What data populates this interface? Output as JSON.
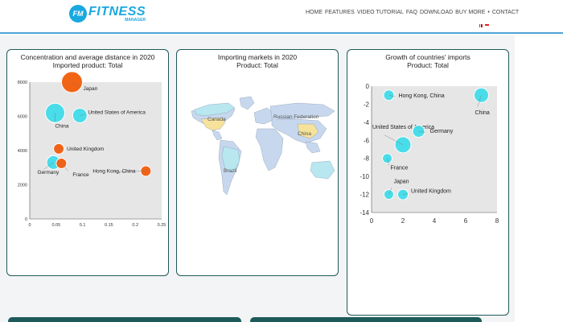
{
  "header": {
    "logo_badge": "FM",
    "logo_main": "FITNESS",
    "logo_sub": "MANAGER",
    "nav": [
      "HOME",
      "FEATURES",
      "VIDEO TUTORIAL",
      "FAQ",
      "DOWNLOAD",
      "BUY MORE",
      "CONTACT"
    ],
    "nav_separator": "•",
    "languages": [
      "en",
      "id"
    ]
  },
  "panels": {
    "concentration": {
      "title1": "Concentration and average distance in 2020",
      "title2": "Imported product: Total"
    },
    "markets": {
      "title1": "Importing markets in 2020",
      "title2": "Product: Total"
    },
    "growth": {
      "title1": "Growth of countries' imports",
      "title2": "Product: Total"
    }
  },
  "colors": {
    "accent": "#1aa8e0",
    "panel_border": "#1d5a5a",
    "cyan": "#41dcea",
    "orange": "#f25c0a",
    "plot_bg": "#e6e6e6"
  },
  "chart_data": [
    {
      "type": "scatter",
      "title": "Concentration and average distance in 2020",
      "subtitle": "Imported product: Total",
      "xlim": [
        0,
        0.25
      ],
      "ylim": [
        0,
        8000
      ],
      "x_ticks": [
        "0",
        "0.05",
        "0.1",
        "0.15",
        "0.2",
        "0.25"
      ],
      "y_ticks": [
        "0",
        "2000",
        "4000",
        "6000",
        "8000"
      ],
      "points": [
        {
          "label": "Japan",
          "x": 0.08,
          "y": 8000,
          "size": 22,
          "color": "orange"
        },
        {
          "label": "United States of America",
          "x": 0.095,
          "y": 6050,
          "size": 14,
          "color": "cyan"
        },
        {
          "label": "China",
          "x": 0.048,
          "y": 6200,
          "size": 20,
          "color": "cyan"
        },
        {
          "label": "United Kingdom",
          "x": 0.055,
          "y": 4100,
          "size": 9,
          "color": "orange"
        },
        {
          "label": "Germany",
          "x": 0.045,
          "y": 3300,
          "size": 13,
          "color": "cyan"
        },
        {
          "label": "France",
          "x": 0.06,
          "y": 3250,
          "size": 9,
          "color": "orange"
        },
        {
          "label": "Hong Kong, China",
          "x": 0.22,
          "y": 2800,
          "size": 9,
          "color": "orange"
        }
      ]
    },
    {
      "type": "map",
      "title": "Importing markets in 2020",
      "subtitle": "Product: Total",
      "labels": [
        "Canada",
        "Russian Federation",
        "China",
        "Brazil"
      ]
    },
    {
      "type": "scatter",
      "title": "Growth of countries' imports",
      "subtitle": "Product: Total",
      "xlim": [
        0,
        8
      ],
      "ylim": [
        -14,
        0
      ],
      "x_ticks": [
        "0",
        "2",
        "4",
        "6",
        "8"
      ],
      "y_ticks": [
        "0",
        "-2",
        "-4",
        "-6",
        "-8",
        "-10",
        "-12",
        "-14"
      ],
      "points": [
        {
          "label": "Hong Kong, China",
          "x": 1.1,
          "y": -1.0,
          "size": 7,
          "color": "cyan"
        },
        {
          "label": "China",
          "x": 7.0,
          "y": -1.0,
          "size": 12,
          "color": "cyan"
        },
        {
          "label": "United States of America",
          "x": 2.0,
          "y": -6.5,
          "size": 14,
          "color": "cyan"
        },
        {
          "label": "Germany",
          "x": 3.0,
          "y": -5.0,
          "size": 9,
          "color": "cyan"
        },
        {
          "label": "France",
          "x": 1.0,
          "y": -8.0,
          "size": 6,
          "color": "cyan"
        },
        {
          "label": "Japan",
          "x": 1.1,
          "y": -12.0,
          "size": 6,
          "color": "cyan"
        },
        {
          "label": "United Kingdom",
          "x": 2.0,
          "y": -12.0,
          "size": 7,
          "color": "cyan"
        }
      ]
    }
  ]
}
